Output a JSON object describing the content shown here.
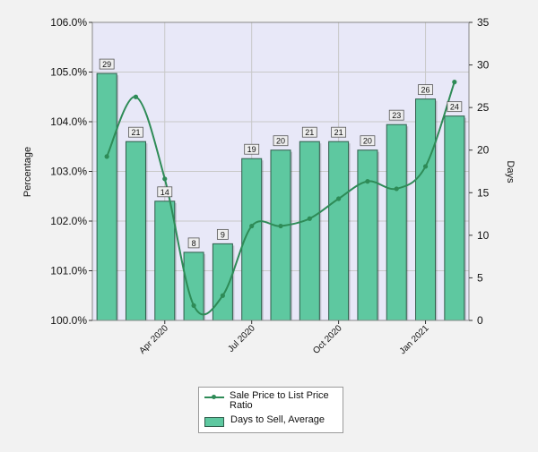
{
  "colors": {
    "background": "#f2f2f2",
    "plot_background": "#e8e8f8",
    "bar_fill": "#5ec8a0",
    "bar_stroke": "#2f5d4b",
    "line": "#2e8b57",
    "grid": "#c8c8c8",
    "label_bg": "#eeeeee"
  },
  "chart_data": {
    "type": "bar",
    "title": "",
    "xlabel": "",
    "ylabel": "Percentage",
    "y2label": "Days",
    "categories": [
      "2020-02",
      "2020-03",
      "2020-04",
      "2020-05",
      "2020-06",
      "2020-07",
      "2020-08",
      "2020-09",
      "2020-10",
      "2020-11",
      "2020-12",
      "2021-01",
      "2021-02"
    ],
    "x_ticks": [
      {
        "label": "Apr 2020",
        "category": "2020-04"
      },
      {
        "label": "Jul 2020",
        "category": "2020-07"
      },
      {
        "label": "Oct 2020",
        "category": "2020-10"
      },
      {
        "label": "Jan 2021",
        "category": "2021-01"
      }
    ],
    "ylim": [
      100,
      106
    ],
    "y_ticks": [
      "100.0%",
      "101.0%",
      "102.0%",
      "103.0%",
      "104.0%",
      "105.0%",
      "106.0%"
    ],
    "y2lim": [
      0,
      35
    ],
    "y2_ticks": [
      "0",
      "5",
      "10",
      "15",
      "20",
      "25",
      "30",
      "35"
    ],
    "grid": true,
    "legend_position": "bottom",
    "series": [
      {
        "name": "Days to Sell, Average",
        "type": "bar",
        "axis": "right",
        "values": [
          29,
          21,
          14,
          8,
          9,
          19,
          20,
          21,
          21,
          20,
          23,
          26,
          24
        ],
        "labels": [
          "29",
          "21",
          "14",
          "8",
          "9",
          "19",
          "20",
          "21",
          "21",
          "20",
          "23",
          "26",
          "24"
        ]
      },
      {
        "name": "Sale Price to List Price Ratio",
        "type": "line",
        "axis": "left",
        "values": [
          103.3,
          104.5,
          102.85,
          100.3,
          100.5,
          101.9,
          101.9,
          102.05,
          102.45,
          102.8,
          102.65,
          103.1,
          104.8
        ]
      }
    ]
  }
}
